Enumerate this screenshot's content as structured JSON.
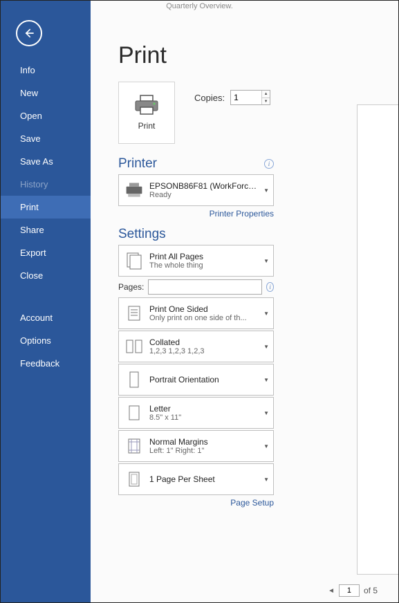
{
  "titlebar": "Quarterly Overview.",
  "sidebar": {
    "items": [
      {
        "label": "Info",
        "state": ""
      },
      {
        "label": "New",
        "state": ""
      },
      {
        "label": "Open",
        "state": ""
      },
      {
        "label": "Save",
        "state": ""
      },
      {
        "label": "Save As",
        "state": ""
      },
      {
        "label": "History",
        "state": "disabled"
      },
      {
        "label": "Print",
        "state": "active"
      },
      {
        "label": "Share",
        "state": ""
      },
      {
        "label": "Export",
        "state": ""
      },
      {
        "label": "Close",
        "state": ""
      }
    ],
    "bottom_items": [
      {
        "label": "Account"
      },
      {
        "label": "Options"
      },
      {
        "label": "Feedback"
      }
    ]
  },
  "page": {
    "title": "Print",
    "print_button": "Print",
    "copies_label": "Copies:",
    "copies_value": "1"
  },
  "printer": {
    "heading": "Printer",
    "name": "EPSONB86F81 (WorkForce 8...",
    "status": "Ready",
    "properties_link": "Printer Properties"
  },
  "settings": {
    "heading": "Settings",
    "pages_label": "Pages:",
    "pages_value": "",
    "items": [
      {
        "title": "Print All Pages",
        "sub": "The whole thing"
      },
      {
        "title": "Print One Sided",
        "sub": "Only print on one side of th..."
      },
      {
        "title": "Collated",
        "sub": "1,2,3    1,2,3    1,2,3"
      },
      {
        "title": "Portrait Orientation",
        "sub": ""
      },
      {
        "title": "Letter",
        "sub": "8.5\" x 11\""
      },
      {
        "title": "Normal Margins",
        "sub": "Left:  1\"    Right:  1\""
      },
      {
        "title": "1 Page Per Sheet",
        "sub": ""
      }
    ],
    "page_setup_link": "Page Setup"
  },
  "pager": {
    "current": "1",
    "total_label": "of 5"
  },
  "colors": {
    "brand": "#2b579a",
    "sidebar_active": "#3e6db5",
    "border": "#bfbfbf"
  }
}
